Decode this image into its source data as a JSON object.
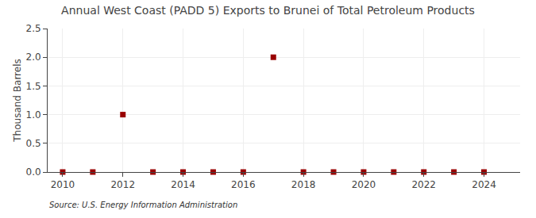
{
  "chart_data": {
    "type": "scatter",
    "title": "Annual West Coast (PADD 5) Exports to Brunei of Total Petroleum Products",
    "y_label": "Thousand Barrels",
    "annotations": [
      "Source: U.S. Energy Information Administration"
    ],
    "x": [
      2010,
      2011,
      2012,
      2013,
      2014,
      2015,
      2016,
      2017,
      2018,
      2019,
      2020,
      2021,
      2022,
      2023,
      2024
    ],
    "values": [
      0,
      0,
      1.0,
      0,
      0,
      0,
      0,
      2.0,
      0,
      0,
      0,
      0,
      0,
      0,
      0
    ],
    "color": "#990000",
    "marker": "square",
    "xlim": [
      2009.5,
      2025.2
    ],
    "xticks": [
      2010,
      2012,
      2014,
      2016,
      2018,
      2020,
      2022,
      2024
    ],
    "ylim": [
      0,
      2.5
    ],
    "yticks": [
      {
        "value": 0.0,
        "label": "0.0"
      },
      0.5,
      {
        "value": 1.0,
        "label": "1.0"
      },
      1.5,
      {
        "value": 2.0,
        "label": "2.0"
      },
      2.5
    ],
    "grid": true
  }
}
